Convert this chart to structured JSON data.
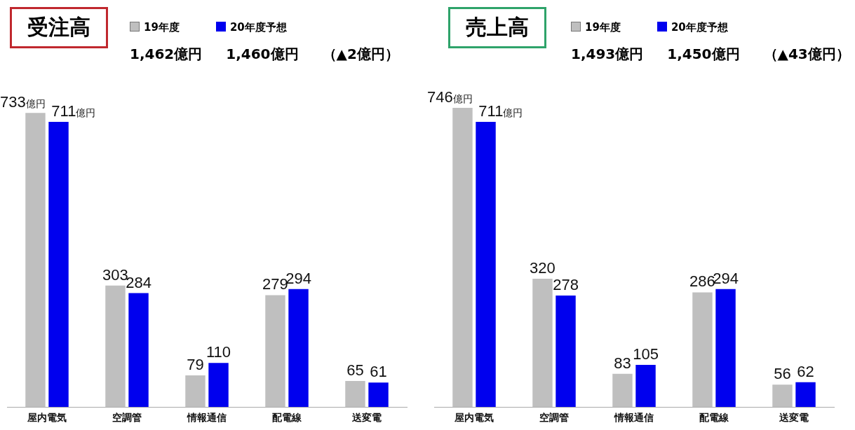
{
  "chart_data": [
    {
      "type": "bar",
      "title": "受注高",
      "categories": [
        "屋内電気",
        "空調管",
        "情報通信",
        "配電線",
        "送変電"
      ],
      "legend": "top",
      "annotations": [
        "1,462億円",
        "1,460億円",
        "（▲2億円）"
      ],
      "series": [
        {
          "name": "19年度",
          "color": "#bfbfbf",
          "values": [
            733,
            303,
            79,
            279,
            65
          ],
          "value_labels": [
            "733億円",
            "303",
            "79",
            "279",
            "65"
          ]
        },
        {
          "name": "20年度予想",
          "color": "#0000ee",
          "values": [
            711,
            284,
            110,
            294,
            61
          ],
          "value_labels": [
            "711億円",
            "284",
            "110",
            "294",
            "61"
          ]
        }
      ]
    },
    {
      "type": "bar",
      "title": "売上高",
      "categories": [
        "屋内電気",
        "空調管",
        "情報通信",
        "配電線",
        "送変電"
      ],
      "legend": "top",
      "annotations": [
        "1,493億円",
        "1,450億円",
        "（▲43億円）"
      ],
      "series": [
        {
          "name": "19年度",
          "color": "#bfbfbf",
          "values": [
            746,
            320,
            83,
            286,
            56
          ],
          "value_labels": [
            "746億円",
            "320",
            "83",
            "286",
            "56"
          ]
        },
        {
          "name": "20年度予想",
          "color": "#0000ee",
          "values": [
            711,
            278,
            105,
            294,
            62
          ],
          "value_labels": [
            "711億円",
            "278",
            "105",
            "294",
            "62"
          ]
        }
      ]
    }
  ]
}
